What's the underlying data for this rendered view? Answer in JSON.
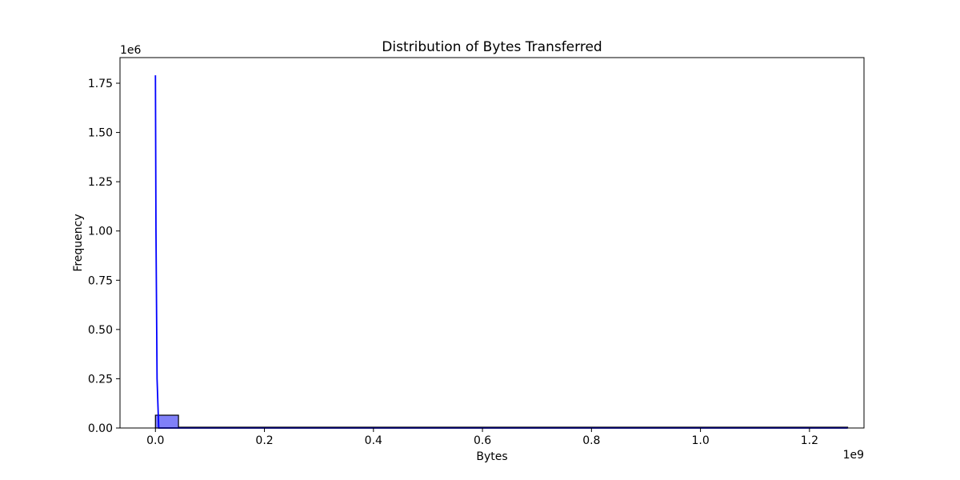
{
  "chart_data": {
    "type": "bar",
    "title": "Distribution of Bytes Transferred",
    "xlabel": "Bytes",
    "ylabel": "Frequency",
    "x_offset_label": "1e9",
    "y_offset_label": "1e6",
    "xlim": [
      -0.065,
      1.3
    ],
    "ylim": [
      0,
      1.88
    ],
    "x_ticks": [
      0.0,
      0.2,
      0.4,
      0.6,
      0.8,
      1.0,
      1.2
    ],
    "x_tick_labels": [
      "0.0",
      "0.2",
      "0.4",
      "0.6",
      "0.8",
      "1.0",
      "1.2"
    ],
    "y_ticks": [
      0.0,
      0.25,
      0.5,
      0.75,
      1.0,
      1.25,
      1.5,
      1.75
    ],
    "y_tick_labels": [
      "0.00",
      "0.25",
      "0.50",
      "0.75",
      "1.00",
      "1.25",
      "1.50",
      "1.75"
    ],
    "bins": [
      {
        "x_start": 0.0,
        "x_end": 0.0423,
        "count": 0.065
      },
      {
        "x_start": 0.0423,
        "x_end": 1.27,
        "count": 0.0
      }
    ],
    "kde_line": {
      "x": [
        0.0,
        0.001,
        0.003,
        0.006,
        0.1,
        0.3,
        0.6,
        0.9,
        1.27
      ],
      "y": [
        1.79,
        1.0,
        0.25,
        0.0,
        0.0,
        0.0,
        0.0,
        0.0,
        0.0
      ]
    },
    "grid": false,
    "colors": {
      "bar_fill": "#8080f8",
      "bar_edge": "#000000",
      "line": "#0000ff",
      "axis": "#000000"
    }
  }
}
